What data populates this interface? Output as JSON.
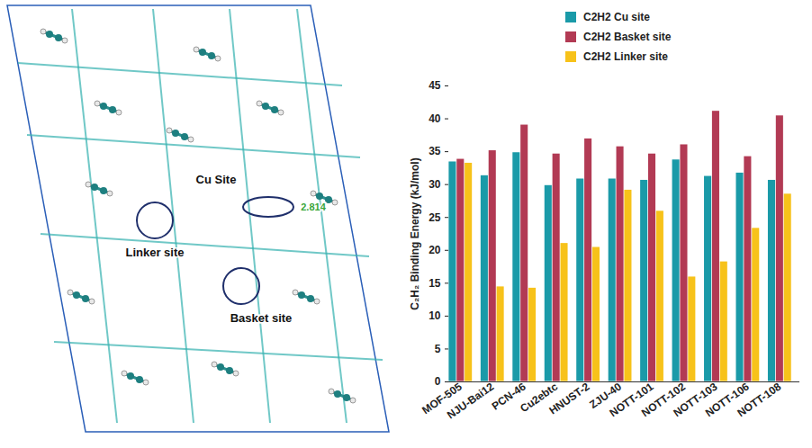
{
  "chart_data": {
    "type": "bar",
    "ylabel": "C₂H₂ Binding Energy (kJ/mol)",
    "categories": [
      "MOF-505",
      "NJU-Bai12",
      "PCN-46",
      "Cu2ebtc",
      "HNUST-2",
      "ZJU-40",
      "NOTT-101",
      "NOTT-102",
      "NOTT-103",
      "NOTT-106",
      "NOTT-108"
    ],
    "series": [
      {
        "name": "C2H2 Cu site",
        "color": "#1a9aa8",
        "values": [
          33.5,
          31.4,
          34.9,
          29.9,
          30.9,
          30.9,
          30.7,
          33.8,
          31.3,
          31.8,
          30.7
        ]
      },
      {
        "name": "C2H2 Basket site",
        "color": "#b23a54",
        "values": [
          33.9,
          35.2,
          39.1,
          34.7,
          37.0,
          35.8,
          34.7,
          36.1,
          41.2,
          34.3,
          40.5
        ]
      },
      {
        "name": "C2H2 Linker site",
        "color": "#f7c21a",
        "values": [
          33.3,
          14.5,
          14.3,
          21.1,
          20.5,
          29.2,
          26.0,
          16.0,
          18.3,
          23.4,
          28.6
        ]
      }
    ],
    "ylim": [
      0,
      45
    ],
    "yticks": [
      0,
      5,
      10,
      15,
      20,
      25,
      30,
      35,
      40,
      45
    ],
    "grid": false,
    "legend": "top"
  },
  "structure_image": {
    "site_labels": [
      "Linker site",
      "Cu Site",
      "Basket site"
    ],
    "distance_label": "2.814"
  }
}
